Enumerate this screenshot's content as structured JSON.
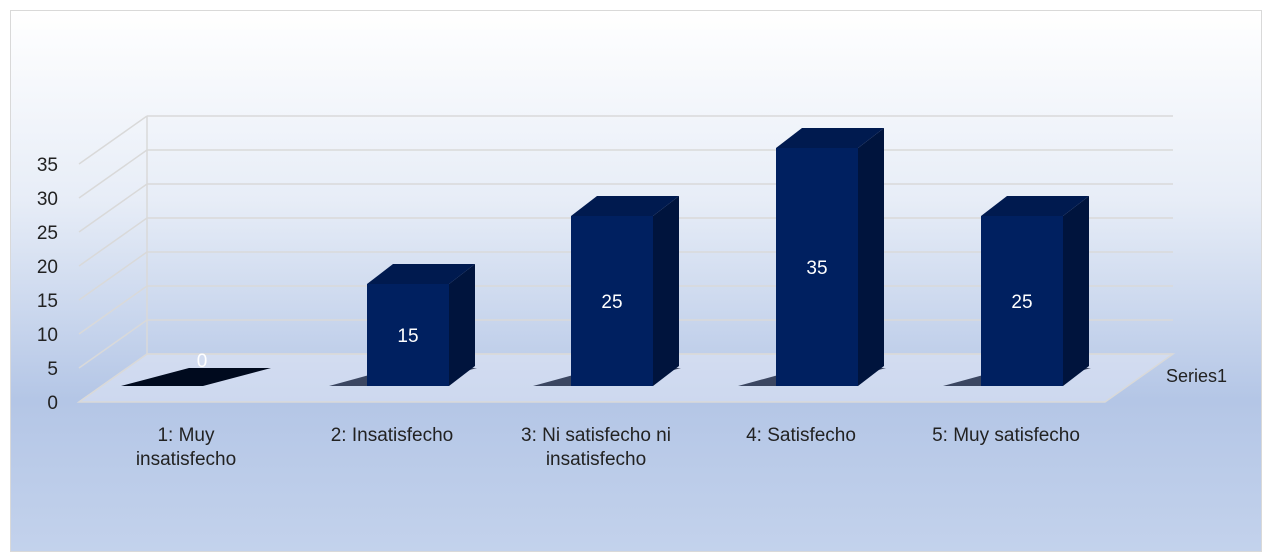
{
  "chart_data": {
    "type": "bar",
    "style": "3d-column",
    "categories": [
      [
        "1: Muy",
        "insatisfecho"
      ],
      [
        "2: Insatisfecho"
      ],
      [
        "3: Ni satisfecho ni",
        "insatisfecho"
      ],
      [
        "4: Satisfecho"
      ],
      [
        "5: Muy satisfecho"
      ]
    ],
    "series": [
      {
        "name": "Series1",
        "values": [
          0,
          15,
          25,
          35,
          25
        ]
      }
    ],
    "ylim": [
      0,
      35
    ],
    "yticks": [
      0,
      5,
      10,
      15,
      20,
      25,
      30,
      35
    ],
    "grid": true,
    "data_labels": true,
    "colors": {
      "bar_front": "#002060",
      "bar_side": "#00143d",
      "bar_top": "#001a4f",
      "zero_bar": "#000a1e",
      "grid": "#d9d9d9",
      "label": "#ffffff"
    }
  }
}
